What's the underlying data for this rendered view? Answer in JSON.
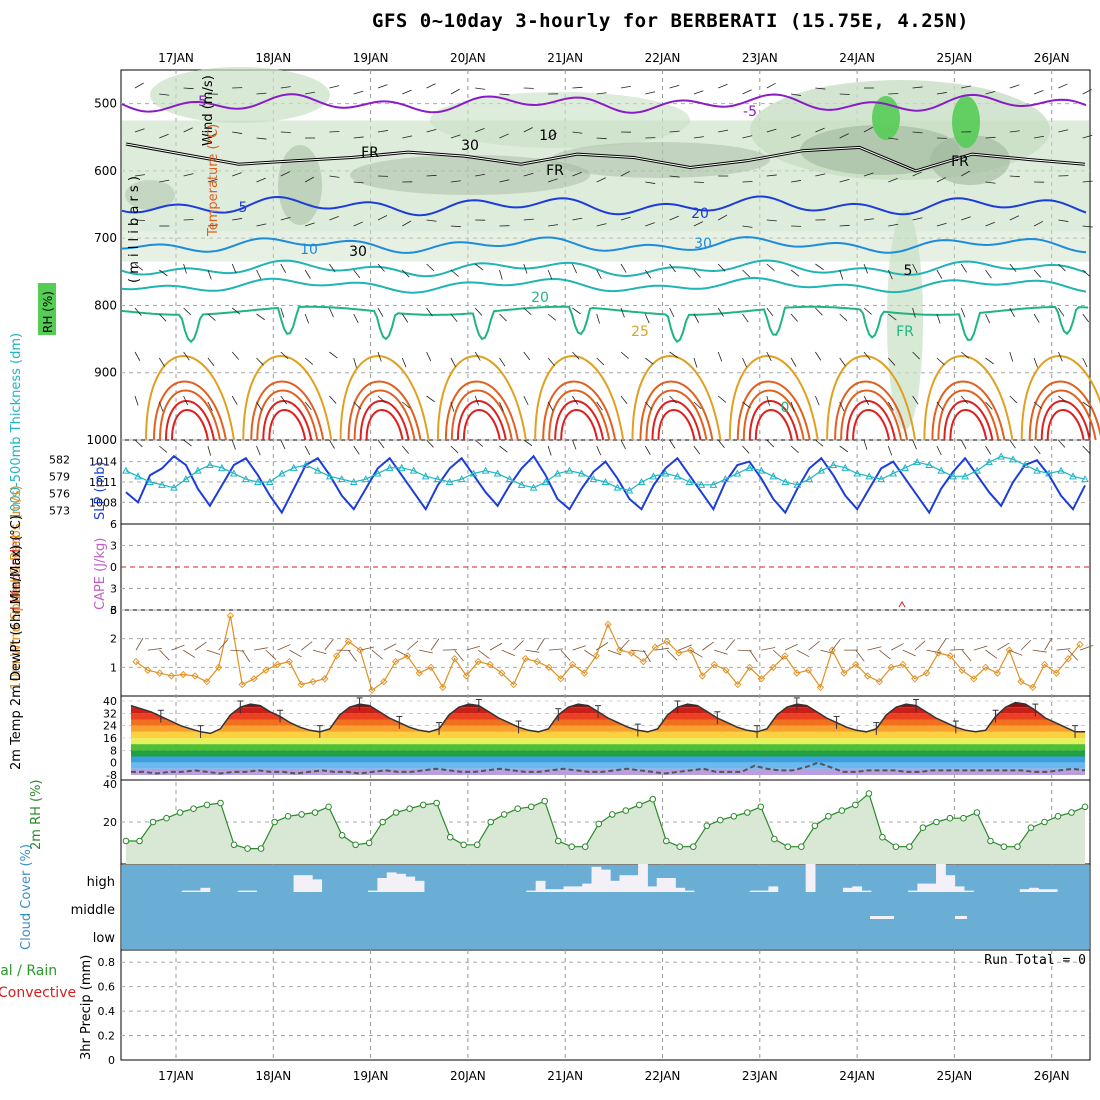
{
  "title": "GFS 0~10day 3-hourly for BERBERATI (15.75E, 4.25N)",
  "colors": {
    "rh_fill": "#c8dfc4",
    "rh_fill_dark": "#9fb89c",
    "rh_fill_green": "#55cc55",
    "temp_neg5": "#8a1cc8",
    "temp_fr": "#000000",
    "temp_5": "#1c3dd8",
    "temp_10": "#1c8cdc",
    "temp_15": "#20b4b4",
    "temp_20": "#20b484",
    "temp_25": "#e0a020",
    "temp_30": "#e06020",
    "temp_35": "#e02020",
    "slp": "#1c3dd8",
    "thickness": "#20b4c4",
    "lifted": "#d81c1c",
    "cape": "#c060c0",
    "wind10m": "#e09020",
    "temp2m_bar": "#000000",
    "dewpt": "#555555",
    "rh2m": "#2a8a2a",
    "cloud_bg": "#6aaed6",
    "cloud_white": "#f4f0f8",
    "precip_total": "#2a9a2a",
    "precip_conv": "#d81c1c"
  },
  "chart_data": [
    {
      "type": "contour",
      "panel": "upper-air",
      "ylabel_parts": [
        "RH (%)",
        "Temperature (°C)",
        "Wind (m/s)"
      ],
      "yunits": "( m i l l i b a r s )",
      "yticks": [
        500,
        600,
        700,
        800,
        900,
        1000
      ],
      "ylim": [
        1000,
        450
      ],
      "contour_labels": [
        "-5",
        "FR",
        "30",
        "10",
        "5",
        "10",
        "30",
        "20",
        "25",
        "20",
        "30",
        "0",
        "-5",
        "FR",
        "FR",
        "FR",
        "5",
        "10",
        "20",
        "30",
        "25",
        "20"
      ],
      "freezing_level_mb": [
        560,
        575,
        590,
        585,
        580,
        572,
        578,
        590,
        575,
        580,
        595,
        585,
        570,
        565,
        600,
        575,
        583,
        590
      ]
    },
    {
      "type": "line",
      "panel": "slp-thickness",
      "ylabel_left": "1000-500mb Thickness (dm)",
      "ylabel_right": "SLP (mb)",
      "yticks_left": [
        "582",
        "579",
        "576",
        "573"
      ],
      "yticks_right": [
        "1014",
        "1011",
        "1008"
      ],
      "series": [
        {
          "name": "SLP (mb)",
          "values": [
            1009.5,
            1008,
            1012,
            1013,
            1014.8,
            1013.5,
            1010,
            1007.5,
            1010.5,
            1013.5,
            1014.5,
            1012,
            1009,
            1006.5,
            1010,
            1013.5,
            1014.5,
            1012,
            1009,
            1007,
            1010,
            1013,
            1014.5,
            1012,
            1009.5,
            1007,
            1010.5,
            1013,
            1014.5,
            1012,
            1009.5,
            1007.5,
            1010.5,
            1013,
            1014.8,
            1012,
            1008.5,
            1007,
            1010,
            1012.5,
            1014,
            1011.5,
            1008.5,
            1007,
            1010.5,
            1013,
            1014.5,
            1012,
            1009.5,
            1007,
            1011,
            1013.5,
            1014,
            1011.5,
            1008.5,
            1006.5,
            1010,
            1013,
            1014.5,
            1012,
            1009,
            1007,
            1010,
            1013,
            1014,
            1011.5,
            1009,
            1006.5,
            1010,
            1012.5,
            1014.5,
            1012,
            1009.5,
            1007.5,
            1011,
            1013.5,
            1014.2,
            1012,
            1009,
            1007,
            1010.5
          ]
        },
        {
          "name": "1000-500mb Thickness (dm)",
          "values": [
            580,
            579,
            578,
            577.5,
            577,
            578.5,
            580,
            581,
            580.5,
            579.5,
            578.5,
            578,
            578,
            579.5,
            580.5,
            581,
            580,
            579,
            578.5,
            578,
            578.5,
            579.5,
            580.5,
            580.5,
            580,
            579,
            578.5,
            578,
            578.5,
            579.5,
            580,
            579.5,
            578.5,
            577.5,
            577,
            578,
            579.5,
            580,
            579.5,
            578.5,
            578,
            577,
            576.5,
            578,
            579,
            579.5,
            579,
            578,
            577.5,
            577.5,
            578.5,
            579.5,
            580.5,
            580,
            579,
            578,
            577.5,
            578.5,
            580,
            581,
            580.5,
            579.5,
            579,
            578.5,
            579.5,
            580.5,
            581.5,
            581,
            580,
            579,
            579,
            580,
            581.5,
            582.5,
            582,
            581,
            580,
            579.5,
            580,
            579,
            578.5
          ]
        }
      ]
    },
    {
      "type": "line",
      "panel": "lifted-cape",
      "ylabel_left": "Lifted Index",
      "ylabel_right": "CAPE (J/kg)",
      "yticks": [
        "6",
        "3",
        "0",
        "3",
        "6"
      ],
      "ylim": [
        -6,
        6
      ],
      "zero_line": true,
      "series": [
        {
          "name": "CAPE (J/kg)",
          "values": [
            0
          ]
        }
      ]
    },
    {
      "type": "line",
      "panel": "wind10m",
      "ylabel": "10m Wind Speed & Barbs (m/s)",
      "yticks": [
        3,
        2,
        1
      ],
      "ylim": [
        0,
        3
      ],
      "series": [
        {
          "name": "Speed",
          "values": [
            1.2,
            0.9,
            0.8,
            0.7,
            0.75,
            0.7,
            0.5,
            1.0,
            2.8,
            0.4,
            0.6,
            0.9,
            1.1,
            1.2,
            0.4,
            0.5,
            0.6,
            1.4,
            1.9,
            1.6,
            0.2,
            0.5,
            1.2,
            1.4,
            0.8,
            1.0,
            0.3,
            1.3,
            0.7,
            1.2,
            1.1,
            0.8,
            0.4,
            1.3,
            1.2,
            1.0,
            0.6,
            1.1,
            0.8,
            1.4,
            2.5,
            1.6,
            1.5,
            1.2,
            1.7,
            1.9,
            1.5,
            1.6,
            0.7,
            1.1,
            0.9,
            0.4,
            1.0,
            0.6,
            1.0,
            1.4,
            0.8,
            0.9,
            0.3,
            1.6,
            0.8,
            1.1,
            0.7,
            0.5,
            1.0,
            1.1,
            0.6,
            0.8,
            1.5,
            1.4,
            0.9,
            0.6,
            1.0,
            0.8,
            1.6,
            0.5,
            0.3,
            1.1,
            0.8,
            1.3,
            1.8
          ]
        }
      ]
    },
    {
      "type": "area",
      "panel": "temp2m",
      "ylabel": "2m Temp 2m DewPt (6hr Min/Max) (°C)",
      "yticks": [
        40,
        32,
        24,
        16,
        8,
        0,
        -8
      ],
      "ytick_labels": [
        "40",
        "32",
        "24",
        "16",
        "8",
        "0",
        "-8"
      ],
      "series": [
        {
          "name": "2m Temp",
          "values": [
            37,
            35,
            33,
            30,
            27,
            24,
            22,
            20,
            19,
            22,
            31,
            36,
            38,
            37,
            33,
            30,
            26,
            23,
            21,
            20,
            22,
            31,
            36,
            38,
            37,
            33,
            29,
            26,
            23,
            21,
            20,
            22,
            31,
            36,
            38,
            37,
            33,
            29,
            26,
            23,
            21,
            20,
            22,
            31,
            36,
            38,
            37,
            33,
            29,
            26,
            23,
            21,
            20,
            22,
            31,
            36,
            38,
            37,
            33,
            29,
            26,
            23,
            21,
            20,
            22,
            31,
            36,
            38,
            37,
            33,
            29,
            26,
            23,
            21,
            20,
            22,
            31,
            36,
            38,
            37,
            33,
            29,
            26,
            23,
            21,
            20,
            21,
            30,
            36,
            39,
            38,
            34,
            29,
            26,
            23,
            20,
            20
          ]
        },
        {
          "name": "2m DewPt",
          "values": [
            -6,
            -6,
            -7,
            -6,
            -6,
            -5,
            -6,
            -7,
            -6,
            -6,
            -5,
            -6,
            -6,
            -7,
            -6,
            -5,
            -6,
            -6,
            -7,
            -6,
            -5,
            -6,
            -6,
            -5,
            -4,
            -5,
            -6,
            -6,
            -5,
            -4,
            -5,
            -6,
            -6,
            -5,
            -4,
            -5,
            -6,
            -6,
            -5,
            -4,
            -5,
            -6,
            -7,
            -6,
            -5,
            -4,
            -6,
            -6,
            -6,
            -2,
            -4,
            -5,
            -5,
            -3,
            0,
            -3,
            -6,
            -6,
            -5,
            -5,
            -5,
            -6,
            -6,
            -5,
            -5,
            -5,
            -5,
            -5,
            -5,
            -5,
            -5,
            -6,
            -6,
            -5,
            -4,
            -5
          ]
        }
      ]
    },
    {
      "type": "area",
      "panel": "rh2m",
      "ylabel": "2m RH (%)",
      "yticks": [
        40,
        20
      ],
      "ylim": [
        0,
        40
      ],
      "series": [
        {
          "name": "2m RH",
          "values": [
            10,
            10,
            20,
            22,
            25,
            27,
            29,
            30,
            8,
            6,
            6,
            20,
            23,
            24,
            25,
            28,
            13,
            8,
            9,
            20,
            25,
            27,
            29,
            30,
            12,
            8,
            8,
            20,
            24,
            27,
            28,
            31,
            10,
            7,
            7,
            19,
            24,
            26,
            29,
            32,
            10,
            7,
            7,
            18,
            21,
            23,
            25,
            28,
            11,
            7,
            7,
            18,
            23,
            26,
            29,
            35,
            12,
            7,
            7,
            17,
            20,
            22,
            22,
            25,
            10,
            7,
            7,
            17,
            20,
            23,
            25,
            28
          ]
        }
      ]
    },
    {
      "type": "bar",
      "panel": "cloud-cover",
      "ylabel": "Cloud Cover (%)",
      "ytick_labels": [
        "high",
        "middle",
        "low"
      ],
      "series": [
        {
          "name": "high",
          "values": [
            0,
            0,
            0,
            0,
            0,
            0,
            5,
            5,
            15,
            0,
            0,
            0,
            5,
            5,
            0,
            0,
            0,
            0,
            60,
            60,
            45,
            0,
            0,
            0,
            0,
            0,
            5,
            50,
            70,
            65,
            55,
            40,
            0,
            0,
            0,
            0,
            0,
            0,
            0,
            0,
            0,
            0,
            0,
            5,
            40,
            10,
            10,
            20,
            20,
            30,
            90,
            80,
            40,
            60,
            60,
            100,
            20,
            50,
            50,
            15,
            5,
            0,
            0,
            0,
            0,
            0,
            0,
            5,
            5,
            20,
            0,
            0,
            0,
            100,
            0,
            0,
            0,
            15,
            20,
            5,
            0,
            0,
            0,
            0,
            5,
            30,
            30,
            100,
            60,
            20,
            5,
            0,
            0,
            0,
            0,
            0,
            10,
            15,
            10,
            10,
            0,
            0,
            0
          ]
        },
        {
          "name": "middle",
          "values": [
            0
          ]
        },
        {
          "name": "low",
          "values": [
            0
          ]
        }
      ]
    },
    {
      "type": "bar",
      "panel": "precip",
      "ylabel_left": "Total / Rain Convective",
      "ylabel": "3hr Precip (mm)",
      "yticks": [
        0.8,
        0.6,
        0.4,
        0.2,
        0
      ],
      "ytick_labels": [
        "0.8",
        "0.6",
        "0.4",
        "0.2",
        "0"
      ],
      "ylim": [
        0,
        0.9
      ],
      "series": [
        {
          "name": "Total / Rain",
          "values": [
            0
          ]
        },
        {
          "name": "Convective",
          "values": [
            0
          ]
        }
      ]
    }
  ],
  "dates": [
    "17JAN",
    "18JAN",
    "19JAN",
    "20JAN",
    "21JAN",
    "22JAN",
    "23JAN",
    "24JAN",
    "25JAN",
    "26JAN"
  ],
  "run_total": "Run Total = 0"
}
